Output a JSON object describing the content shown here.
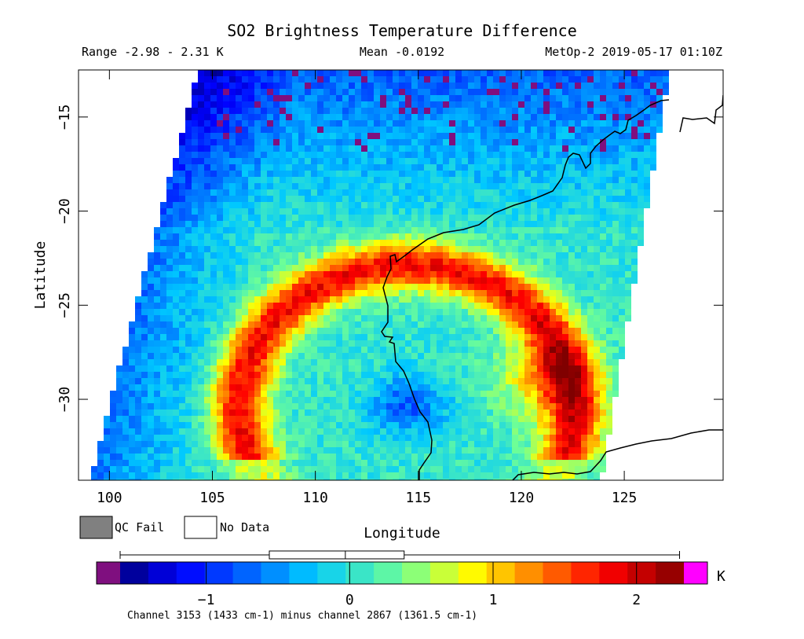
{
  "chart_data": {
    "type": "heatmap",
    "title": "SO2 Brightness Temperature Difference",
    "subtitle": {
      "range": "Range -2.98 - 2.31 K",
      "mean": "Mean -0.0192",
      "source": "MetOp-2 2019-05-17 01:10Z"
    },
    "xlabel": "Longitude",
    "ylabel": "Latitude",
    "xlim": [
      98.5,
      129.8
    ],
    "ylim": [
      -34.3,
      -12.5
    ],
    "x_ticks": [
      100,
      105,
      110,
      115,
      120,
      125
    ],
    "y_ticks": [
      -15,
      -20,
      -25,
      -30
    ],
    "swath_corners": [
      [
        104.3,
        -12.5
      ],
      [
        127.2,
        -12.5
      ],
      [
        123.9,
        -34.3
      ],
      [
        99.0,
        -34.3
      ]
    ],
    "features": [
      {
        "name": "Positive BTD arc (SO2 signal)",
        "center": [
          114.5,
          -30.5
        ],
        "radius_deg": 7.6,
        "value": 1.7
      },
      {
        "name": "Maximum near 121E 29S",
        "center": [
          121.0,
          -29.0
        ],
        "value": 2.2
      },
      {
        "name": "Negative pocket inside arc",
        "center": [
          114.5,
          -30.3
        ],
        "value": -0.8
      }
    ],
    "colorbar": {
      "min": -1.6,
      "max": 2.33,
      "ticks": [
        -1,
        0,
        1,
        2
      ],
      "unit": "K",
      "under_color": "#7f0f7f",
      "over_color": "#ff00ff",
      "label": "Channel 3153 (1433 cm-1) minus channel 2867 (1361.5 cm-1)"
    },
    "boxplot": {
      "whisker_low": -1.6,
      "q1": -0.56,
      "median": -0.03,
      "q3": 0.38,
      "whisker_high": 2.3
    },
    "legend": [
      {
        "label": "QC Fail",
        "color": "#808080"
      },
      {
        "label": "No Data",
        "color": "#ffffff"
      }
    ]
  }
}
